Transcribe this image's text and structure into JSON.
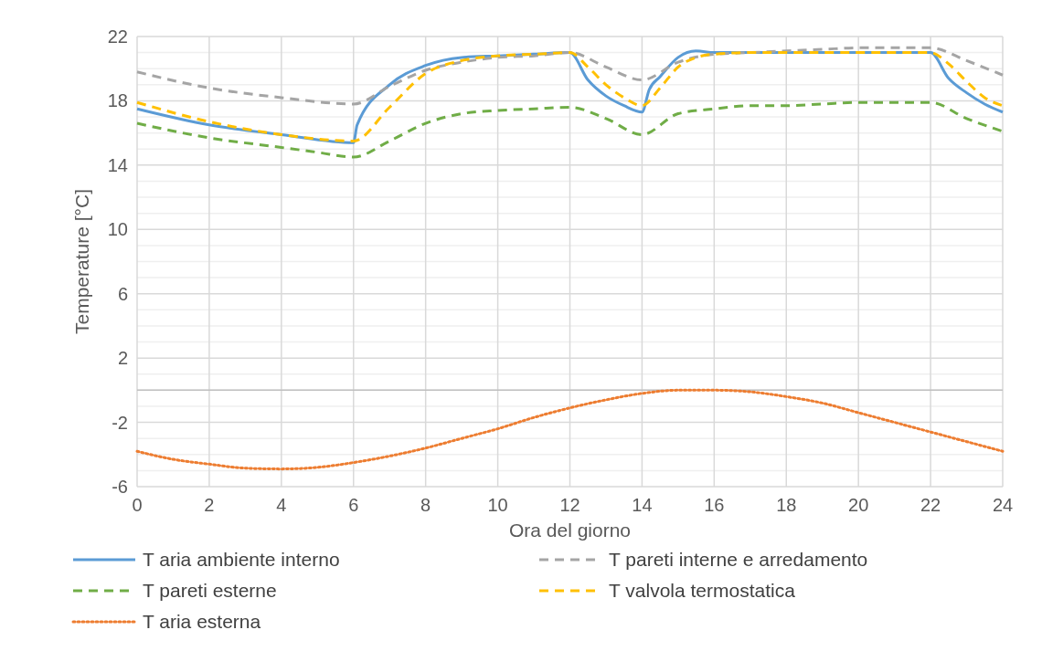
{
  "chart_data": {
    "type": "line",
    "xlabel": "Ora del giorno",
    "ylabel": "Temperature [°C]",
    "xlim": [
      0,
      24
    ],
    "xticks": [
      0,
      2,
      4,
      6,
      8,
      10,
      12,
      14,
      16,
      18,
      20,
      22,
      24
    ],
    "ylim": [
      -6,
      22
    ],
    "yticks": [
      -6,
      {
        "value": -5,
        "label": null
      },
      {
        "value": -4,
        "label": null
      },
      {
        "value": -3,
        "label": null
      },
      -2,
      {
        "value": -1,
        "label": null
      },
      {
        "value": 0,
        "label": null
      },
      {
        "value": 1,
        "label": null
      },
      2,
      {
        "value": 3,
        "label": null
      },
      {
        "value": 4,
        "label": null
      },
      {
        "value": 5,
        "label": null
      },
      6,
      {
        "value": 7,
        "label": null
      },
      {
        "value": 8,
        "label": null
      },
      {
        "value": 9,
        "label": null
      },
      10,
      {
        "value": 11,
        "label": null
      },
      {
        "value": 12,
        "label": null
      },
      {
        "value": 13,
        "label": null
      },
      14,
      {
        "value": 15,
        "label": null
      },
      {
        "value": 16,
        "label": null
      },
      {
        "value": 17,
        "label": null
      },
      18,
      {
        "value": 19,
        "label": null
      },
      {
        "value": 20,
        "label": null
      },
      {
        "value": 21,
        "label": null
      },
      22
    ],
    "grid": true,
    "legend": "bottom",
    "marker": "none",
    "series": [
      {
        "name": "T aria ambiente interno",
        "color": "#5b9bd5",
        "line_style": "solid",
        "x": [
          0,
          2,
          4,
          6,
          6.1,
          7,
          8,
          9,
          10,
          11,
          12,
          12.5,
          13,
          13.5,
          14,
          14.2,
          14.5,
          15,
          15.5,
          16,
          17,
          18,
          19,
          20,
          21,
          22,
          22.5,
          23,
          23.5,
          24
        ],
        "values": [
          17.5,
          16.5,
          15.9,
          15.4,
          16.5,
          19.0,
          20.2,
          20.7,
          20.8,
          20.9,
          21.0,
          19.3,
          18.3,
          17.7,
          17.3,
          18.7,
          19.5,
          20.7,
          21.1,
          21.0,
          21.0,
          21.0,
          21.0,
          21.0,
          21.0,
          21.0,
          19.4,
          18.5,
          17.8,
          17.3
        ]
      },
      {
        "name": "T pareti interne e arredamento",
        "color": "#a5a5a5",
        "line_style": "dashed",
        "x": [
          0,
          2,
          4,
          6,
          7,
          8,
          9,
          10,
          11,
          12,
          13,
          14,
          15,
          16,
          17,
          18,
          19,
          20,
          21,
          22,
          23,
          24
        ],
        "values": [
          19.8,
          18.8,
          18.2,
          17.8,
          18.9,
          19.9,
          20.4,
          20.7,
          20.8,
          21.0,
          20.1,
          19.3,
          20.4,
          20.9,
          21.0,
          21.1,
          21.2,
          21.3,
          21.3,
          21.3,
          20.5,
          19.6
        ]
      },
      {
        "name": "T pareti esterne",
        "color": "#70ad47",
        "line_style": "dashed",
        "x": [
          0,
          2,
          4,
          5,
          6,
          7,
          8,
          9,
          10,
          11,
          12,
          13,
          14,
          15,
          16,
          17,
          18,
          19,
          20,
          21,
          22,
          23,
          24
        ],
        "values": [
          16.6,
          15.7,
          15.1,
          14.8,
          14.5,
          15.5,
          16.6,
          17.2,
          17.4,
          17.5,
          17.6,
          16.9,
          15.9,
          17.2,
          17.5,
          17.7,
          17.7,
          17.8,
          17.9,
          17.9,
          17.9,
          16.9,
          16.1
        ]
      },
      {
        "name": "T valvola termostatica",
        "color": "#ffc000",
        "line_style": "dashed",
        "x": [
          0,
          2,
          4,
          6,
          7,
          8,
          9,
          10,
          11,
          12,
          12.5,
          13,
          13.5,
          14,
          14.5,
          15,
          15.5,
          16,
          17,
          18,
          19,
          20,
          21,
          22,
          22.5,
          23,
          23.5,
          24
        ],
        "values": [
          17.9,
          16.7,
          15.9,
          15.5,
          17.6,
          19.7,
          20.5,
          20.8,
          20.9,
          21.0,
          20.1,
          19.0,
          18.2,
          17.7,
          18.8,
          20.1,
          20.7,
          20.9,
          21.0,
          21.0,
          21.0,
          21.0,
          21.0,
          21.0,
          20.3,
          19.2,
          18.2,
          17.7
        ]
      },
      {
        "name": "T aria esterna",
        "color": "#ed7d31",
        "line_style": "dotted",
        "x": [
          0,
          1,
          2,
          3,
          4,
          5,
          6,
          7,
          8,
          9,
          10,
          11,
          12,
          13,
          14,
          15,
          16,
          17,
          18,
          19,
          20,
          21,
          22,
          23,
          24
        ],
        "values": [
          -3.8,
          -4.3,
          -4.6,
          -4.85,
          -4.9,
          -4.8,
          -4.5,
          -4.1,
          -3.6,
          -3.0,
          -2.4,
          -1.7,
          -1.1,
          -0.6,
          -0.2,
          0.0,
          0.0,
          -0.1,
          -0.4,
          -0.8,
          -1.4,
          -2.0,
          -2.6,
          -3.2,
          -3.8
        ]
      }
    ]
  }
}
